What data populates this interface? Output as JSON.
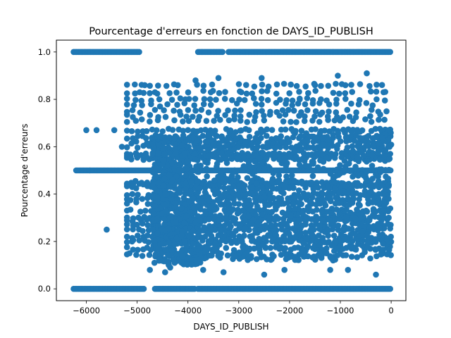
{
  "colors": {
    "marker": "#1f77b4",
    "axes": "#000000",
    "background": "#ffffff"
  },
  "chart_data": {
    "type": "scatter",
    "title": "Pourcentage d'erreurs en fonction de DAYS_ID_PUBLISH",
    "xlabel": "DAYS_ID_PUBLISH",
    "ylabel": "Pourcentage d'erreurs",
    "xlim": [
      -6590,
      290
    ],
    "ylim": [
      -0.05,
      1.05
    ],
    "xticks": [
      -6000,
      -5000,
      -4000,
      -3000,
      -2000,
      -1000,
      0
    ],
    "xtick_labels": [
      "−6000",
      "−5000",
      "−4000",
      "−3000",
      "−2000",
      "−1000",
      "0"
    ],
    "yticks": [
      0.0,
      0.2,
      0.4,
      0.6,
      0.8,
      1.0
    ],
    "ytick_labels": [
      "0.0",
      "0.2",
      "0.4",
      "0.6",
      "0.8",
      "1.0"
    ],
    "grid": false,
    "legend": null,
    "marker": "circle",
    "series": [
      {
        "x_range": [
          -6250,
          0
        ],
        "dense_levels": [
          0.0,
          0.5,
          0.6,
          0.67,
          0.75,
          0.33,
          0.4,
          0.25,
          0.2,
          0.3,
          0.43,
          0.57,
          0.14,
          0.17,
          0.45,
          0.55,
          0.62,
          0.38,
          0.22,
          0.78,
          0.29,
          0.71,
          0.36,
          0.64,
          0.27,
          0.73,
          0.44,
          0.56,
          0.8,
          0.83,
          0.86
        ],
        "ones_segments": [
          [
            -6250,
            -4950
          ],
          [
            -3800,
            -3300
          ],
          [
            -3200,
            0
          ]
        ],
        "zeros_segments": [
          [
            -6250,
            -4850
          ],
          [
            -4650,
            -3850
          ],
          [
            -3800,
            0
          ]
        ],
        "half_range": [
          -6200,
          0
        ],
        "cluster_x_range": [
          -4700,
          -3750
        ],
        "sample_points": [
          [
            -5600,
            0.25
          ],
          [
            -5800,
            0.67
          ],
          [
            -6000,
            0.67
          ],
          [
            -5300,
            0.6
          ],
          [
            -5450,
            0.67
          ],
          [
            -2500,
            0.06
          ],
          [
            -2100,
            0.08
          ],
          [
            -1050,
            0.9
          ],
          [
            -480,
            0.91
          ],
          [
            -3400,
            0.89
          ],
          [
            -2550,
            0.89
          ],
          [
            -900,
            0.86
          ],
          [
            -1500,
            0.86
          ],
          [
            -4200,
            0.86
          ],
          [
            -3850,
            0.88
          ],
          [
            -4750,
            0.08
          ],
          [
            -4450,
            0.07
          ],
          [
            -4350,
            0.09
          ],
          [
            -3700,
            0.08
          ],
          [
            -3300,
            0.07
          ],
          [
            -1200,
            0.08
          ],
          [
            -300,
            0.06
          ],
          [
            -850,
            0.08
          ],
          [
            -5100,
            0.2
          ],
          [
            -5150,
            0.15
          ],
          [
            -4950,
            0.83
          ],
          [
            -4850,
            0.86
          ],
          [
            -4650,
            0.83
          ],
          [
            -4550,
            0.77
          ],
          [
            -150,
            0.83
          ],
          [
            -50,
            0.67
          ],
          [
            -30,
            0.6
          ],
          [
            -20,
            0.57
          ],
          [
            -10,
            0.27
          ],
          [
            -5,
            0.22
          ],
          [
            -2800,
            0.67
          ],
          [
            -2950,
            0.83
          ],
          [
            -3550,
            0.83
          ],
          [
            -4050,
            0.8
          ],
          [
            -1800,
            0.8
          ]
        ]
      }
    ]
  }
}
